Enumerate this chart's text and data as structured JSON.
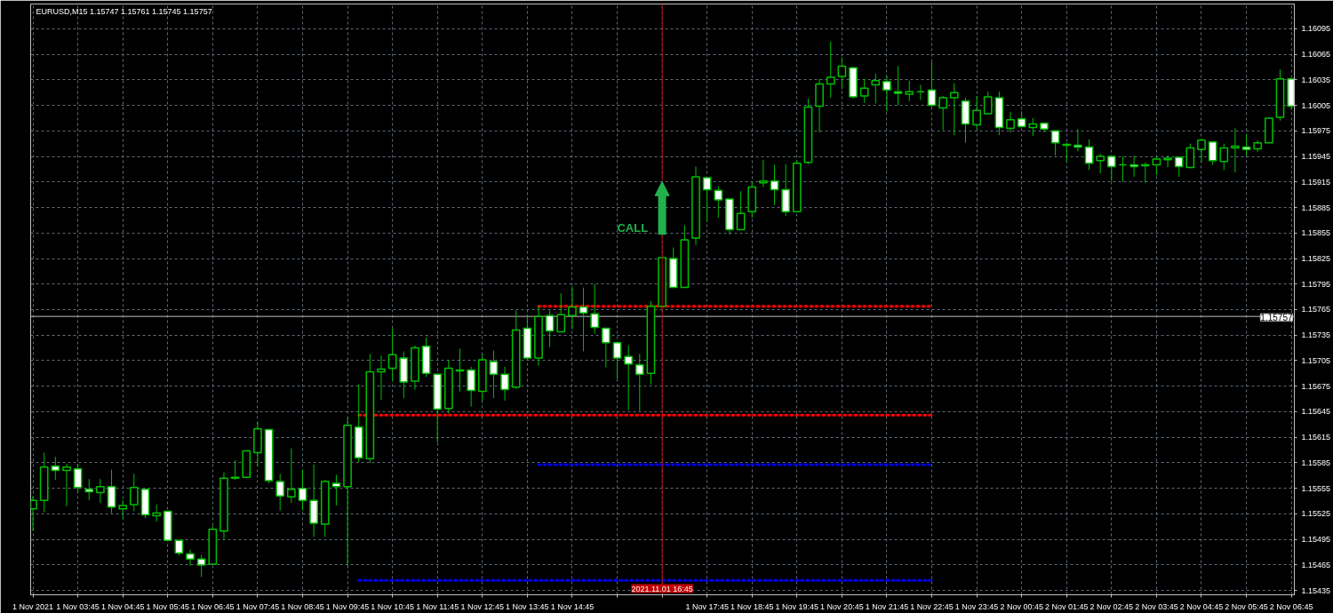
{
  "chart_data": {
    "type": "candlestick",
    "title": "EURUSD,M15  1.15747 1.15761 1.15745 1.15757",
    "color": "#00c000",
    "grid": true,
    "x": [
      "2021-11-01T02:45",
      "2021-11-01T03:00",
      "2021-11-01T03:15",
      "2021-11-01T03:30",
      "2021-11-01T03:45",
      "2021-11-01T04:00",
      "2021-11-01T04:15",
      "2021-11-01T04:30",
      "2021-11-01T04:45",
      "2021-11-01T05:00",
      "2021-11-01T05:15",
      "2021-11-01T05:30",
      "2021-11-01T05:45",
      "2021-11-01T06:00",
      "2021-11-01T06:15",
      "2021-11-01T06:30",
      "2021-11-01T06:45",
      "2021-11-01T07:00",
      "2021-11-01T07:15",
      "2021-11-01T07:30",
      "2021-11-01T07:45",
      "2021-11-01T08:00",
      "2021-11-01T08:15",
      "2021-11-01T08:30",
      "2021-11-01T08:45",
      "2021-11-01T09:00",
      "2021-11-01T09:15",
      "2021-11-01T09:30",
      "2021-11-01T09:45",
      "2021-11-01T10:00",
      "2021-11-01T10:15",
      "2021-11-01T10:30",
      "2021-11-01T10:45",
      "2021-11-01T11:00",
      "2021-11-01T11:15",
      "2021-11-01T11:30",
      "2021-11-01T11:45",
      "2021-11-01T12:00",
      "2021-11-01T12:15",
      "2021-11-01T12:30",
      "2021-11-01T12:45",
      "2021-11-01T13:00",
      "2021-11-01T13:15",
      "2021-11-01T13:30",
      "2021-11-01T13:45",
      "2021-11-01T14:00",
      "2021-11-01T14:15",
      "2021-11-01T14:30",
      "2021-11-01T14:45",
      "2021-11-01T15:00",
      "2021-11-01T15:15",
      "2021-11-01T15:30",
      "2021-11-01T15:45",
      "2021-11-01T16:00",
      "2021-11-01T16:15",
      "2021-11-01T16:30",
      "2021-11-01T16:45",
      "2021-11-01T17:00",
      "2021-11-01T17:15",
      "2021-11-01T17:30",
      "2021-11-01T17:45",
      "2021-11-01T18:00",
      "2021-11-01T18:15",
      "2021-11-01T18:30",
      "2021-11-01T18:45",
      "2021-11-01T19:00",
      "2021-11-01T19:15",
      "2021-11-01T19:30",
      "2021-11-01T19:45",
      "2021-11-01T20:00",
      "2021-11-01T20:15",
      "2021-11-01T20:30",
      "2021-11-01T20:45",
      "2021-11-01T21:00",
      "2021-11-01T21:15",
      "2021-11-01T21:30",
      "2021-11-01T21:45",
      "2021-11-01T22:00",
      "2021-11-01T22:15",
      "2021-11-01T22:30",
      "2021-11-01T22:45",
      "2021-11-01T23:00",
      "2021-11-01T23:15",
      "2021-11-01T23:30",
      "2021-11-01T23:45",
      "2021-11-02T00:00",
      "2021-11-02T00:15",
      "2021-11-02T00:30",
      "2021-11-02T00:45",
      "2021-11-02T01:00",
      "2021-11-02T01:15",
      "2021-11-02T01:30",
      "2021-11-02T01:45",
      "2021-11-02T02:00",
      "2021-11-02T02:15",
      "2021-11-02T02:30",
      "2021-11-02T02:45",
      "2021-11-02T03:00",
      "2021-11-02T03:15",
      "2021-11-02T03:30",
      "2021-11-02T03:45",
      "2021-11-02T04:00",
      "2021-11-02T04:15",
      "2021-11-02T04:30",
      "2021-11-02T04:45",
      "2021-11-02T05:00",
      "2021-11-02T05:15",
      "2021-11-02T05:30",
      "2021-11-02T05:45",
      "2021-11-02T06:00",
      "2021-11-02T06:15",
      "2021-11-02T06:30",
      "2021-11-02T06:45"
    ],
    "ohlc": [
      [
        1.15531,
        1.15546,
        1.15505,
        1.15541
      ],
      [
        1.15541,
        1.15597,
        1.15527,
        1.1558
      ],
      [
        1.15581,
        1.15592,
        1.15565,
        1.15576
      ],
      [
        1.15576,
        1.15584,
        1.15534,
        1.1558
      ],
      [
        1.15578,
        1.15584,
        1.1555,
        1.15556
      ],
      [
        1.15554,
        1.15566,
        1.15541,
        1.15551
      ],
      [
        1.1555,
        1.15566,
        1.15538,
        1.15557
      ],
      [
        1.15557,
        1.15577,
        1.15526,
        1.15533
      ],
      [
        1.15531,
        1.15541,
        1.1552,
        1.15535
      ],
      [
        1.15536,
        1.15572,
        1.15528,
        1.15556
      ],
      [
        1.15554,
        1.15554,
        1.1552,
        1.15524
      ],
      [
        1.15523,
        1.15536,
        1.15516,
        1.15526
      ],
      [
        1.15528,
        1.15528,
        1.15494,
        1.15494
      ],
      [
        1.15494,
        1.15494,
        1.15476,
        1.15479
      ],
      [
        1.15478,
        1.15483,
        1.15464,
        1.15472
      ],
      [
        1.15472,
        1.15477,
        1.15451,
        1.15465
      ],
      [
        1.15466,
        1.15511,
        1.15466,
        1.15507
      ],
      [
        1.15505,
        1.15574,
        1.15495,
        1.15567
      ],
      [
        1.15567,
        1.15588,
        1.15565,
        1.15568
      ],
      [
        1.15568,
        1.15599,
        1.15568,
        1.15599
      ],
      [
        1.15597,
        1.15633,
        1.15581,
        1.15625
      ],
      [
        1.15624,
        1.15625,
        1.15561,
        1.15564
      ],
      [
        1.15563,
        1.15572,
        1.15529,
        1.15546
      ],
      [
        1.15545,
        1.15602,
        1.15538,
        1.15554
      ],
      [
        1.15555,
        1.15577,
        1.15529,
        1.15541
      ],
      [
        1.15541,
        1.15583,
        1.15498,
        1.15514
      ],
      [
        1.15513,
        1.15565,
        1.15498,
        1.15563
      ],
      [
        1.15561,
        1.15571,
        1.15535,
        1.15557
      ],
      [
        1.15557,
        1.15638,
        1.15464,
        1.15629
      ],
      [
        1.15627,
        1.15677,
        1.15586,
        1.15591
      ],
      [
        1.1559,
        1.15713,
        1.15585,
        1.15692
      ],
      [
        1.15692,
        1.15711,
        1.15659,
        1.15695
      ],
      [
        1.15696,
        1.15743,
        1.15681,
        1.15712
      ],
      [
        1.15708,
        1.15716,
        1.15661,
        1.1568
      ],
      [
        1.15681,
        1.15723,
        1.15671,
        1.1572
      ],
      [
        1.15722,
        1.15732,
        1.15686,
        1.1569
      ],
      [
        1.15689,
        1.15689,
        1.15609,
        1.15648
      ],
      [
        1.15649,
        1.15706,
        1.15643,
        1.15696
      ],
      [
        1.15694,
        1.15719,
        1.15669,
        1.15693
      ],
      [
        1.15694,
        1.15698,
        1.15651,
        1.1567
      ],
      [
        1.15669,
        1.15713,
        1.15658,
        1.15706
      ],
      [
        1.15704,
        1.15717,
        1.15661,
        1.15689
      ],
      [
        1.15689,
        1.15698,
        1.15658,
        1.15671
      ],
      [
        1.15674,
        1.15764,
        1.15672,
        1.15741
      ],
      [
        1.15743,
        1.15759,
        1.15708,
        1.15708
      ],
      [
        1.15708,
        1.15769,
        1.15699,
        1.15757
      ],
      [
        1.15758,
        1.15764,
        1.15721,
        1.1574
      ],
      [
        1.15739,
        1.15784,
        1.15739,
        1.15759
      ],
      [
        1.15758,
        1.15792,
        1.15742,
        1.15768
      ],
      [
        1.15768,
        1.15791,
        1.15716,
        1.15761
      ],
      [
        1.1576,
        1.15795,
        1.15737,
        1.15744
      ],
      [
        1.15743,
        1.15743,
        1.15697,
        1.15726
      ],
      [
        1.15726,
        1.15726,
        1.15684,
        1.15708
      ],
      [
        1.1571,
        1.15723,
        1.15647,
        1.15701
      ],
      [
        1.157,
        1.15713,
        1.15646,
        1.15689
      ],
      [
        1.1569,
        1.15775,
        1.15677,
        1.15769
      ],
      [
        1.15769,
        1.15826,
        1.15768,
        1.15826
      ],
      [
        1.15825,
        1.15838,
        1.15791,
        1.15791
      ],
      [
        1.15791,
        1.15864,
        1.15791,
        1.15847
      ],
      [
        1.15849,
        1.15933,
        1.15841,
        1.15921
      ],
      [
        1.1592,
        1.1592,
        1.15868,
        1.15906
      ],
      [
        1.15905,
        1.1591,
        1.15873,
        1.15894
      ],
      [
        1.15895,
        1.15895,
        1.15853,
        1.15859
      ],
      [
        1.15859,
        1.15904,
        1.15859,
        1.15878
      ],
      [
        1.1588,
        1.15915,
        1.15873,
        1.15909
      ],
      [
        1.15914,
        1.15941,
        1.15909,
        1.15916
      ],
      [
        1.15916,
        1.15935,
        1.15888,
        1.15906
      ],
      [
        1.15906,
        1.15936,
        1.15875,
        1.1588
      ],
      [
        1.1588,
        1.15941,
        1.1588,
        1.15937
      ],
      [
        1.15938,
        1.16013,
        1.15936,
        1.16003
      ],
      [
        1.16004,
        1.16036,
        1.15973,
        1.1603
      ],
      [
        1.1603,
        1.1608,
        1.16014,
        1.16038
      ],
      [
        1.16039,
        1.16061,
        1.16024,
        1.16051
      ],
      [
        1.16049,
        1.1605,
        1.16013,
        1.16015
      ],
      [
        1.16016,
        1.16036,
        1.16008,
        1.16025
      ],
      [
        1.16029,
        1.16042,
        1.16007,
        1.16034
      ],
      [
        1.16033,
        1.1604,
        1.15998,
        1.16023
      ],
      [
        1.16021,
        1.16051,
        1.16005,
        1.16019
      ],
      [
        1.16018,
        1.16034,
        1.1601,
        1.16021
      ],
      [
        1.16021,
        1.16029,
        1.16011,
        1.16021
      ],
      [
        1.16023,
        1.16056,
        1.16003,
        1.16005
      ],
      [
        1.16002,
        1.16016,
        1.15976,
        1.16014
      ],
      [
        1.16014,
        1.16031,
        1.1597,
        1.1602
      ],
      [
        1.1601,
        1.16014,
        1.15961,
        1.15983
      ],
      [
        1.15982,
        1.16016,
        1.15977,
        1.15999
      ],
      [
        1.15995,
        1.16021,
        1.15995,
        1.16015
      ],
      [
        1.16014,
        1.16021,
        1.1597,
        1.15979
      ],
      [
        1.15978,
        1.15997,
        1.15973,
        1.15988
      ],
      [
        1.15989,
        1.15998,
        1.15979,
        1.1598
      ],
      [
        1.15979,
        1.1599,
        1.15969,
        1.15983
      ],
      [
        1.15984,
        1.15984,
        1.15973,
        1.15977
      ],
      [
        1.15975,
        1.15975,
        1.15946,
        1.15961
      ],
      [
        1.15958,
        1.15961,
        1.15938,
        1.15959
      ],
      [
        1.15958,
        1.15977,
        1.15951,
        1.15956
      ],
      [
        1.15956,
        1.15965,
        1.15929,
        1.15937
      ],
      [
        1.1594,
        1.15948,
        1.15925,
        1.15945
      ],
      [
        1.15945,
        1.15945,
        1.15916,
        1.15933
      ],
      [
        1.15935,
        1.15945,
        1.15915,
        1.15935
      ],
      [
        1.15935,
        1.15946,
        1.15921,
        1.15933
      ],
      [
        1.15934,
        1.15938,
        1.15914,
        1.15935
      ],
      [
        1.15935,
        1.15945,
        1.15923,
        1.15942
      ],
      [
        1.15941,
        1.15946,
        1.15932,
        1.15943
      ],
      [
        1.15944,
        1.15944,
        1.15921,
        1.15933
      ],
      [
        1.15932,
        1.1596,
        1.15931,
        1.15955
      ],
      [
        1.15953,
        1.15966,
        1.15938,
        1.15964
      ],
      [
        1.15962,
        1.15962,
        1.15935,
        1.1594
      ],
      [
        1.15939,
        1.1596,
        1.15929,
        1.15955
      ],
      [
        1.15955,
        1.15978,
        1.15926,
        1.15957
      ],
      [
        1.15956,
        1.15971,
        1.15946,
        1.15953
      ],
      [
        1.15954,
        1.15964,
        1.1595,
        1.15961
      ],
      [
        1.15961,
        1.15991,
        1.15961,
        1.1599
      ],
      [
        1.15991,
        1.16047,
        1.15987,
        1.16036
      ],
      [
        1.16036,
        1.16036,
        1.16,
        1.16004
      ]
    ],
    "series": [
      {
        "type": "line",
        "color": "#ff0000",
        "line_style": "dotted",
        "x": [
          "2021-11-01T14:00",
          "2021-11-01T22:45"
        ],
        "values": [
          1.15769,
          1.15769
        ]
      },
      {
        "type": "line",
        "color": "#ff0000",
        "line_style": "dotted",
        "x": [
          "2021-11-01T10:00",
          "2021-11-01T22:45"
        ],
        "values": [
          1.15641,
          1.15641
        ]
      },
      {
        "type": "line",
        "color": "#0000ff",
        "line_style": "dotted",
        "x": [
          "2021-11-01T14:00",
          "2021-11-01T22:45"
        ],
        "values": [
          1.15583,
          1.15583
        ]
      },
      {
        "type": "line",
        "color": "#0000ff",
        "line_style": "dotted",
        "x": [
          "2021-11-01T10:00",
          "2021-11-01T22:45"
        ],
        "values": [
          1.15447,
          1.15447
        ]
      }
    ],
    "ref_lines": [
      {
        "axis": "y",
        "value": 1.15757,
        "label": "1.15757",
        "color": "#c0c0c0"
      },
      {
        "axis": "x",
        "value": "2021-11-01T16:45",
        "label": "2021.11.01 16:45",
        "color": "#c00000"
      }
    ],
    "annotations": [
      {
        "text": "CALL",
        "x": "2021-11-01T16:45",
        "y": 1.15853
      }
    ],
    "xlim": [
      "2021-11-01T02:42",
      "2021-11-02T06:49"
    ],
    "ylim": [
      1.1543,
      1.16124
    ],
    "xticks": [
      {
        "value": "2021-11-01T02:45",
        "label": "1 Nov 2021"
      },
      {
        "value": "2021-11-01T03:45",
        "label": "1 Nov 03:45"
      },
      {
        "value": "2021-11-01T04:45",
        "label": "1 Nov 04:45"
      },
      {
        "value": "2021-11-01T05:45",
        "label": "1 Nov 05:45"
      },
      {
        "value": "2021-11-01T06:45",
        "label": "1 Nov 06:45"
      },
      {
        "value": "2021-11-01T07:45",
        "label": "1 Nov 07:45"
      },
      {
        "value": "2021-11-01T08:45",
        "label": "1 Nov 08:45"
      },
      {
        "value": "2021-11-01T09:45",
        "label": "1 Nov 09:45"
      },
      {
        "value": "2021-11-01T10:45",
        "label": "1 Nov 10:45"
      },
      {
        "value": "2021-11-01T11:45",
        "label": "1 Nov 11:45"
      },
      {
        "value": "2021-11-01T12:45",
        "label": "1 Nov 12:45"
      },
      {
        "value": "2021-11-01T13:45",
        "label": "1 Nov 13:45"
      },
      {
        "value": "2021-11-01T14:45",
        "label": "1 Nov 14:45"
      },
      {
        "value": "2021-11-01T15:45",
        "label": null
      },
      {
        "value": "2021-11-01T16:45",
        "label": null
      },
      {
        "value": "2021-11-01T17:45",
        "label": "1 Nov 17:45"
      },
      {
        "value": "2021-11-01T18:45",
        "label": "1 Nov 18:45"
      },
      {
        "value": "2021-11-01T19:45",
        "label": "1 Nov 19:45"
      },
      {
        "value": "2021-11-01T20:45",
        "label": "1 Nov 20:45"
      },
      {
        "value": "2021-11-01T21:45",
        "label": "1 Nov 21:45"
      },
      {
        "value": "2021-11-01T22:45",
        "label": "1 Nov 22:45"
      },
      {
        "value": "2021-11-01T23:45",
        "label": "1 Nov 23:45"
      },
      {
        "value": "2021-11-02T00:45",
        "label": "2 Nov 00:45"
      },
      {
        "value": "2021-11-02T01:45",
        "label": "2 Nov 01:45"
      },
      {
        "value": "2021-11-02T02:45",
        "label": "2 Nov 02:45"
      },
      {
        "value": "2021-11-02T03:45",
        "label": "2 Nov 03:45"
      },
      {
        "value": "2021-11-02T04:45",
        "label": "2 Nov 04:45"
      },
      {
        "value": "2021-11-02T05:45",
        "label": "2 Nov 05:45"
      },
      {
        "value": "2021-11-02T06:45",
        "label": "2 Nov 06:45"
      }
    ],
    "yticks": [
      1.15435,
      1.15465,
      1.15495,
      1.15525,
      1.15555,
      1.15585,
      1.15615,
      1.15645,
      1.15675,
      1.15705,
      1.15735,
      1.15765,
      1.15795,
      1.15825,
      1.15855,
      1.15885,
      1.15915,
      1.15945,
      1.15975,
      1.16005,
      1.16035,
      1.16065,
      1.16095
    ]
  }
}
